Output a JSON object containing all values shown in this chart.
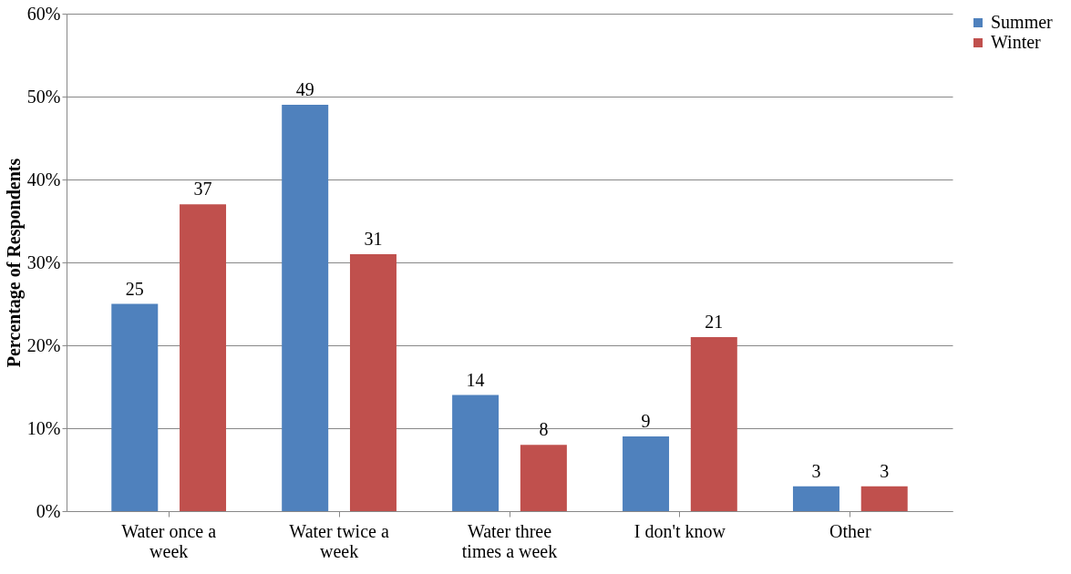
{
  "chart_data": {
    "type": "bar",
    "ylabel": "Percentage of Respondents",
    "categories": [
      "Water once a week",
      "Water twice a week",
      "Water three times a week",
      "I don't know",
      "Other"
    ],
    "series": [
      {
        "name": "Summer",
        "color": "#4f81bd",
        "values": [
          25,
          49,
          14,
          9,
          3
        ]
      },
      {
        "name": "Winter",
        "color": "#c0504d",
        "values": [
          37,
          31,
          8,
          21,
          3
        ]
      }
    ],
    "ylim": [
      0,
      60
    ],
    "yticks": [
      {
        "value": 0,
        "label": "0%"
      },
      {
        "value": 10,
        "label": "10%"
      },
      {
        "value": 20,
        "label": "20%"
      },
      {
        "value": 30,
        "label": "30%"
      },
      {
        "value": 40,
        "label": "40%"
      },
      {
        "value": 50,
        "label": "50%"
      },
      {
        "value": 60,
        "label": "60%"
      }
    ],
    "grid": "y",
    "legend": "right",
    "data_labels": true
  }
}
